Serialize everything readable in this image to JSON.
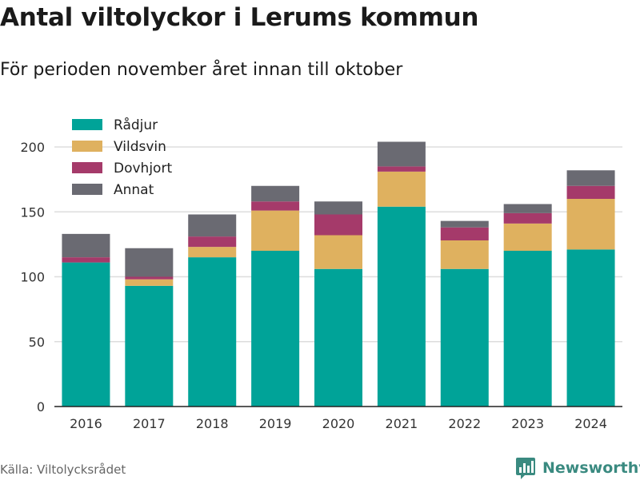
{
  "header": {
    "title": "Antal viltolyckor i Lerums kommun",
    "subtitle": "För perioden november året innan till oktober"
  },
  "footer": {
    "source": "Källa: Viltolycksrådet",
    "brand": "Newsworthy",
    "brand_icon": "bar-chart-logo-icon"
  },
  "chart_data": {
    "type": "bar",
    "stacked": true,
    "categories": [
      "2016",
      "2017",
      "2018",
      "2019",
      "2020",
      "2021",
      "2022",
      "2023",
      "2024"
    ],
    "series": [
      {
        "name": "Rådjur",
        "color": "#00a398",
        "values": [
          111,
          93,
          115,
          120,
          106,
          154,
          106,
          120,
          121
        ]
      },
      {
        "name": "Vildsvin",
        "color": "#dfb15f",
        "values": [
          0,
          5,
          8,
          31,
          26,
          27,
          22,
          21,
          39
        ]
      },
      {
        "name": "Dovhjort",
        "color": "#a53a6a",
        "values": [
          4,
          2,
          8,
          7,
          16,
          4,
          10,
          8,
          10
        ]
      },
      {
        "name": "Annat",
        "color": "#6a6a72",
        "values": [
          18,
          22,
          17,
          12,
          10,
          19,
          5,
          7,
          12
        ]
      }
    ],
    "ylim": [
      0,
      210
    ],
    "yticks": [
      0,
      50,
      100,
      150,
      200
    ],
    "grid": true,
    "legend_position": "top-left"
  }
}
